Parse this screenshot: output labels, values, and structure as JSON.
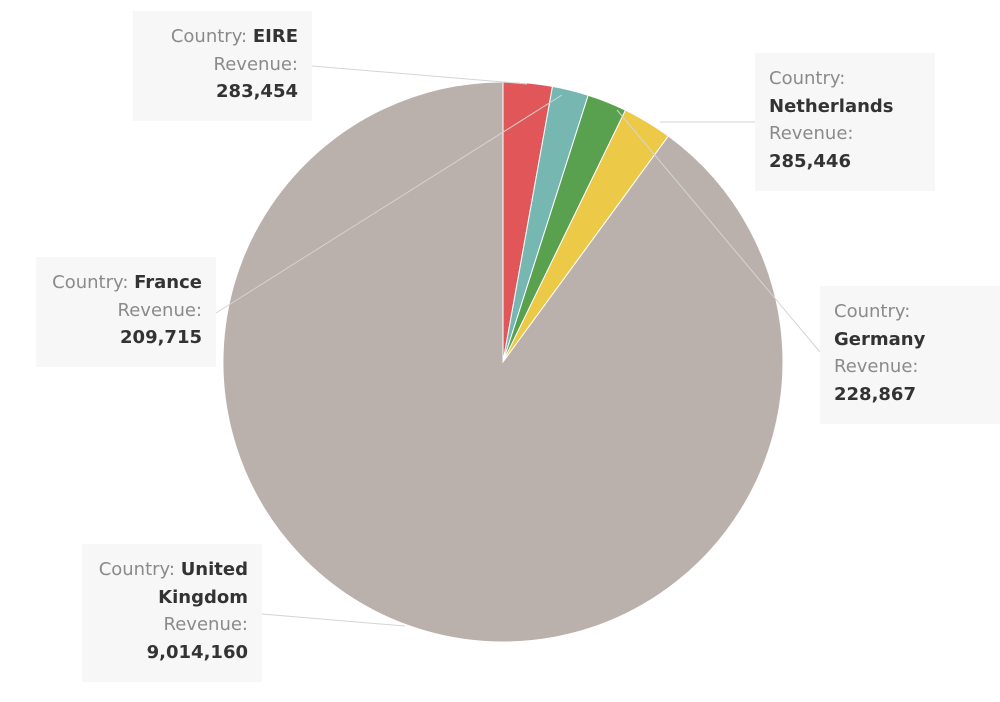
{
  "chart_data": {
    "type": "pie",
    "label_key_country": "Country:",
    "label_key_revenue": "Revenue:",
    "slices": [
      {
        "country": "EIRE",
        "revenue": 283454,
        "revenue_label": "283,454",
        "color": "#e15759"
      },
      {
        "country": "France",
        "revenue": 209715,
        "revenue_label": "209,715",
        "color": "#76b7b2"
      },
      {
        "country": "Germany",
        "revenue": 228867,
        "revenue_label": "228,867",
        "color": "#59a14f"
      },
      {
        "country": "Netherlands",
        "revenue": 285446,
        "revenue_label": "285,446",
        "color": "#edc948"
      },
      {
        "country": "United Kingdom",
        "revenue": 9014160,
        "revenue_label": "9,014,160",
        "color": "#bab0ac"
      }
    ]
  }
}
